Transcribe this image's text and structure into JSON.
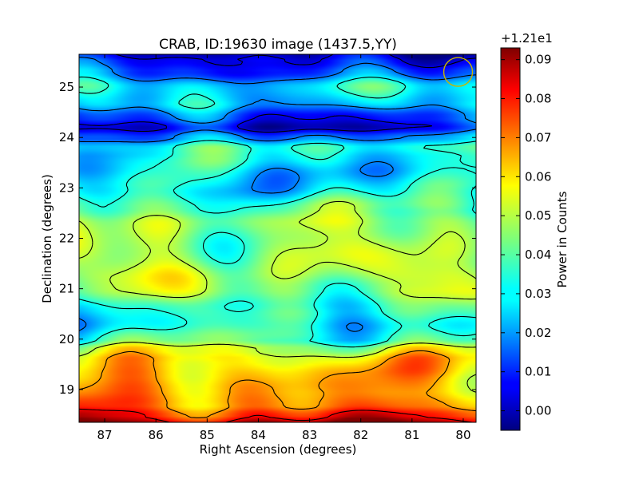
{
  "chart_data": {
    "type": "heatmap",
    "title": "CRAB, ID:19630 image (1437.5,YY)",
    "xlabel": "Right Ascension (degrees)",
    "ylabel": "Declination (degrees)",
    "colorbar_label": "Power in Counts",
    "colorbar_offset": "+1.21e1",
    "colormap": "jet",
    "xlim": [
      87.5,
      79.75
    ],
    "ylim": [
      18.35,
      25.65
    ],
    "x_ticks": [
      87,
      86,
      85,
      84,
      83,
      82,
      81,
      80
    ],
    "x_tick_labels": [
      "87",
      "86",
      "85",
      "84",
      "83",
      "82",
      "81",
      "80"
    ],
    "y_ticks": [
      19,
      20,
      21,
      22,
      23,
      24,
      25
    ],
    "y_tick_labels": [
      "19",
      "20",
      "21",
      "22",
      "23",
      "24",
      "25"
    ],
    "colorbar_ticks": [
      0.0,
      0.01,
      0.02,
      0.03,
      0.04,
      0.05,
      0.06,
      0.07,
      0.08,
      0.09
    ],
    "colorbar_tick_labels": [
      "0.00",
      "0.01",
      "0.02",
      "0.03",
      "0.04",
      "0.05",
      "0.06",
      "0.07",
      "0.08",
      "0.09"
    ],
    "colorbar_range": [
      -0.005,
      0.093
    ],
    "contours": true,
    "contour_color": "#000000",
    "marker": {
      "type": "circle",
      "ra": 80.1,
      "dec": 25.3,
      "color": "#c8b400"
    },
    "declination_profile": {
      "dec": [
        18.35,
        18.5,
        18.7,
        19.0,
        19.3,
        19.6,
        19.8,
        20.0,
        20.3,
        20.6,
        21.0,
        21.3,
        21.6,
        22.0,
        22.3,
        22.6,
        23.0,
        23.3,
        23.6,
        23.8,
        24.0,
        24.2,
        24.4,
        24.7,
        25.0,
        25.3,
        25.5,
        25.65
      ],
      "power": [
        0.088,
        0.078,
        0.068,
        0.064,
        0.062,
        0.059,
        0.052,
        0.038,
        0.032,
        0.036,
        0.046,
        0.048,
        0.047,
        0.046,
        0.047,
        0.04,
        0.03,
        0.028,
        0.032,
        0.035,
        0.02,
        0.004,
        0.012,
        0.026,
        0.03,
        0.014,
        0.008,
        0.002
      ]
    }
  }
}
